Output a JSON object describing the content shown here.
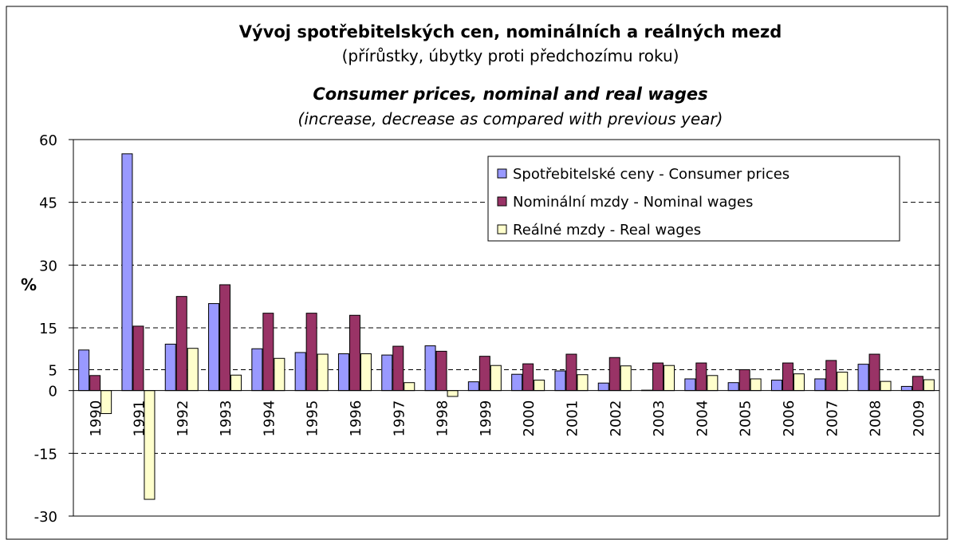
{
  "chart_data": {
    "type": "bar",
    "title": "Vývoj spotřebitelských cen, nominálních a reálných mezd",
    "subtitle": "(přírůstky, úbytky proti předchozímu roku)",
    "title_en": "Consumer prices, nominal and real wages",
    "subtitle_en": "(increase, decrease as compared with previous year)",
    "y_label": "%",
    "categories": [
      "1990",
      "1991",
      "1992",
      "1993",
      "1994",
      "1995",
      "1996",
      "1997",
      "1998",
      "1999",
      "2000",
      "2001",
      "2002",
      "2003",
      "2004",
      "2005",
      "2006",
      "2007",
      "2008",
      "2009"
    ],
    "series": [
      {
        "name": "Spotřebitelské ceny - Consumer prices",
        "color": "#9999FF",
        "values": [
          9.7,
          56.6,
          11.1,
          20.8,
          10.0,
          9.1,
          8.8,
          8.5,
          10.7,
          2.1,
          3.9,
          4.7,
          1.8,
          0.1,
          2.8,
          1.9,
          2.5,
          2.8,
          6.3,
          1.0
        ]
      },
      {
        "name": "Nominální mzdy - Nominal wages",
        "color": "#993366",
        "values": [
          3.6,
          15.4,
          22.5,
          25.3,
          18.5,
          18.5,
          18.0,
          10.6,
          9.4,
          8.2,
          6.4,
          8.7,
          7.9,
          6.6,
          6.6,
          5.0,
          6.6,
          7.2,
          8.7,
          3.4
        ]
      },
      {
        "name": "Reálné mzdy - Real wages",
        "color": "#FFFFCC",
        "values": [
          -5.5,
          -26.0,
          10.1,
          3.7,
          7.7,
          8.7,
          8.8,
          1.9,
          -1.4,
          6.0,
          2.5,
          3.8,
          5.9,
          6.0,
          3.6,
          2.8,
          4.0,
          4.4,
          2.2,
          2.6
        ]
      }
    ],
    "ylim": [
      -30,
      60
    ],
    "yticks": [
      60,
      45,
      30,
      15,
      5,
      0,
      -15,
      -30
    ],
    "grid": true
  }
}
